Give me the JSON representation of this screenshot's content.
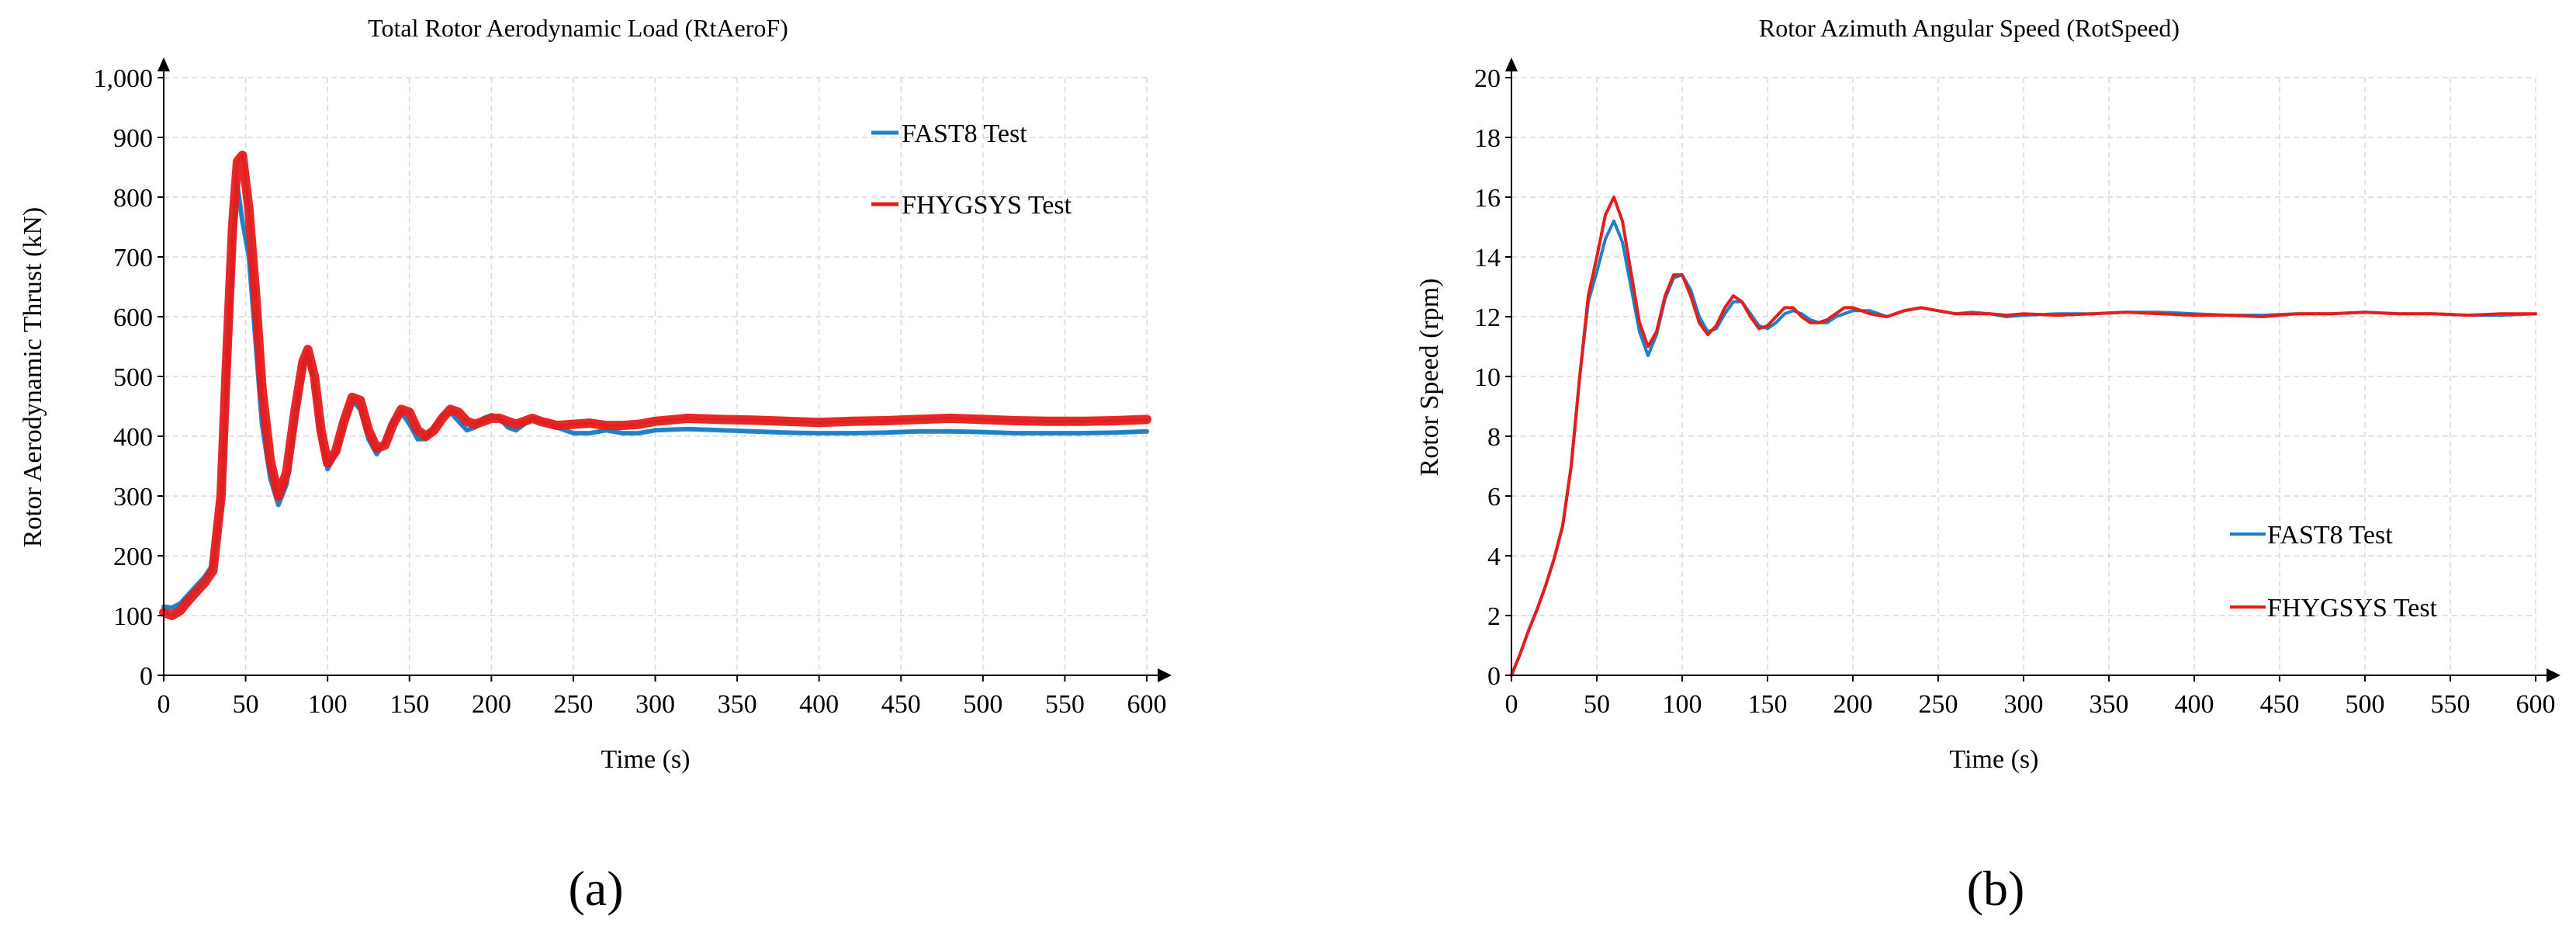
{
  "colors": {
    "fast8": "#1f7fc7",
    "fhygsys": "#e41d1d",
    "grid": "#d9d9d9",
    "axis": "#000000"
  },
  "chart_data": [
    {
      "type": "line",
      "panel_label": "(a)",
      "title": "Total Rotor Aerodynamic Load (RtAeroF)",
      "xlabel": "Time (s)",
      "ylabel": "Rotor Aerodynamic Thrust (kN)",
      "xlim": [
        0,
        600
      ],
      "ylim": [
        0,
        1000
      ],
      "xticks": [
        0,
        50,
        100,
        150,
        200,
        250,
        300,
        350,
        400,
        450,
        500,
        550,
        600
      ],
      "yticks": [
        0,
        100,
        200,
        300,
        400,
        500,
        600,
        700,
        800,
        900,
        1000
      ],
      "ytick_labels": [
        "0",
        "100",
        "200",
        "300",
        "400",
        "500",
        "600",
        "700",
        "800",
        "900",
        "1,000"
      ],
      "grid": true,
      "legend_position": "top-right",
      "series": [
        {
          "name": "FAST8 Test",
          "color_key": "fast8",
          "band": 6,
          "x": [
            0,
            5,
            10,
            15,
            20,
            25,
            30,
            35,
            38,
            42,
            45,
            48,
            52,
            56,
            60,
            65,
            70,
            75,
            80,
            85,
            88,
            92,
            96,
            100,
            105,
            110,
            115,
            120,
            125,
            130,
            135,
            140,
            145,
            150,
            155,
            160,
            165,
            170,
            175,
            180,
            185,
            190,
            195,
            200,
            205,
            210,
            215,
            220,
            225,
            230,
            240,
            250,
            260,
            270,
            280,
            290,
            300,
            320,
            340,
            360,
            380,
            400,
            420,
            440,
            460,
            480,
            500,
            520,
            540,
            560,
            580,
            600
          ],
          "y": [
            115,
            113,
            120,
            135,
            150,
            165,
            185,
            280,
            450,
            700,
            820,
            760,
            700,
            560,
            420,
            330,
            285,
            320,
            420,
            510,
            540,
            490,
            400,
            345,
            370,
            420,
            460,
            445,
            395,
            370,
            390,
            425,
            440,
            420,
            395,
            395,
            415,
            435,
            440,
            425,
            410,
            415,
            430,
            435,
            430,
            415,
            410,
            420,
            430,
            425,
            415,
            405,
            405,
            410,
            405,
            405,
            410,
            412,
            410,
            408,
            406,
            405,
            405,
            406,
            408,
            408,
            407,
            405,
            405,
            405,
            406,
            408
          ]
        },
        {
          "name": "FHYGSYS Test",
          "color_key": "fhygsys",
          "band": 12,
          "x": [
            0,
            5,
            10,
            15,
            20,
            25,
            30,
            35,
            38,
            42,
            45,
            48,
            52,
            56,
            60,
            65,
            70,
            75,
            80,
            85,
            88,
            92,
            96,
            100,
            105,
            110,
            115,
            120,
            125,
            130,
            135,
            140,
            145,
            150,
            155,
            160,
            165,
            170,
            175,
            180,
            185,
            190,
            195,
            200,
            205,
            210,
            215,
            220,
            225,
            230,
            240,
            250,
            260,
            270,
            280,
            290,
            300,
            320,
            340,
            360,
            380,
            400,
            420,
            440,
            460,
            480,
            500,
            520,
            540,
            560,
            580,
            600
          ],
          "y": [
            105,
            100,
            108,
            125,
            140,
            155,
            175,
            300,
            500,
            750,
            860,
            870,
            780,
            640,
            480,
            360,
            300,
            340,
            440,
            525,
            545,
            500,
            410,
            355,
            375,
            425,
            465,
            460,
            410,
            380,
            385,
            420,
            445,
            440,
            410,
            400,
            410,
            430,
            445,
            440,
            425,
            420,
            425,
            430,
            430,
            425,
            420,
            425,
            430,
            425,
            418,
            420,
            422,
            418,
            418,
            420,
            425,
            430,
            428,
            427,
            425,
            423,
            425,
            426,
            428,
            430,
            428,
            426,
            425,
            425,
            426,
            428
          ]
        }
      ]
    },
    {
      "type": "line",
      "panel_label": "(b)",
      "title": "Rotor Azimuth Angular Speed (RotSpeed)",
      "xlabel": "Time (s)",
      "ylabel": "Rotor Speed (rpm)",
      "xlim": [
        0,
        600
      ],
      "ylim": [
        0,
        20
      ],
      "xticks": [
        0,
        50,
        100,
        150,
        200,
        250,
        300,
        350,
        400,
        450,
        500,
        550,
        600
      ],
      "yticks": [
        0,
        2,
        4,
        6,
        8,
        10,
        12,
        14,
        16,
        18,
        20
      ],
      "ytick_labels": [
        "0",
        "2",
        "4",
        "6",
        "8",
        "10",
        "12",
        "14",
        "16",
        "18",
        "20"
      ],
      "grid": true,
      "legend_position": "bottom-right",
      "series": [
        {
          "name": "FAST8 Test",
          "color_key": "fast8",
          "band": 0,
          "x": [
            0,
            5,
            10,
            15,
            20,
            25,
            30,
            35,
            40,
            45,
            50,
            55,
            60,
            65,
            70,
            75,
            80,
            85,
            90,
            95,
            100,
            105,
            110,
            115,
            120,
            125,
            130,
            135,
            140,
            145,
            150,
            155,
            160,
            165,
            170,
            175,
            180,
            185,
            190,
            195,
            200,
            210,
            220,
            230,
            240,
            250,
            260,
            270,
            280,
            290,
            300,
            320,
            340,
            360,
            380,
            400,
            420,
            440,
            460,
            480,
            500,
            520,
            540,
            560,
            580,
            600
          ],
          "y": [
            0,
            0.7,
            1.5,
            2.2,
            3.0,
            3.9,
            5.0,
            7.0,
            10.0,
            12.5,
            13.5,
            14.6,
            15.2,
            14.5,
            13.0,
            11.5,
            10.7,
            11.4,
            12.6,
            13.3,
            13.4,
            12.9,
            12.0,
            11.5,
            11.6,
            12.1,
            12.5,
            12.5,
            12.1,
            11.7,
            11.6,
            11.8,
            12.1,
            12.2,
            12.1,
            11.9,
            11.8,
            11.8,
            12.0,
            12.1,
            12.2,
            12.2,
            12.0,
            12.2,
            12.3,
            12.2,
            12.1,
            12.15,
            12.1,
            12.0,
            12.05,
            12.1,
            12.1,
            12.15,
            12.15,
            12.1,
            12.05,
            12.05,
            12.1,
            12.1,
            12.15,
            12.1,
            12.1,
            12.05,
            12.05,
            12.1
          ]
        },
        {
          "name": "FHYGSYS Test",
          "color_key": "fhygsys",
          "band": 0,
          "x": [
            0,
            5,
            10,
            15,
            20,
            25,
            30,
            35,
            40,
            45,
            50,
            55,
            60,
            65,
            70,
            75,
            80,
            85,
            90,
            95,
            100,
            105,
            110,
            115,
            120,
            125,
            130,
            135,
            140,
            145,
            150,
            155,
            160,
            165,
            170,
            175,
            180,
            185,
            190,
            195,
            200,
            210,
            220,
            230,
            240,
            250,
            260,
            270,
            280,
            290,
            300,
            320,
            340,
            360,
            380,
            400,
            420,
            440,
            460,
            480,
            500,
            520,
            540,
            560,
            580,
            600
          ],
          "y": [
            0,
            0.7,
            1.5,
            2.2,
            3.0,
            3.9,
            5.0,
            7.0,
            10.0,
            12.7,
            14.0,
            15.4,
            16.0,
            15.2,
            13.5,
            11.8,
            11.0,
            11.5,
            12.7,
            13.4,
            13.4,
            12.7,
            11.8,
            11.4,
            11.7,
            12.3,
            12.7,
            12.5,
            12.0,
            11.6,
            11.7,
            12.0,
            12.3,
            12.3,
            12.0,
            11.8,
            11.8,
            11.9,
            12.1,
            12.3,
            12.3,
            12.1,
            12.0,
            12.2,
            12.3,
            12.2,
            12.1,
            12.1,
            12.1,
            12.05,
            12.1,
            12.05,
            12.1,
            12.15,
            12.1,
            12.05,
            12.05,
            12.0,
            12.1,
            12.1,
            12.15,
            12.1,
            12.1,
            12.05,
            12.1,
            12.1
          ]
        }
      ]
    }
  ]
}
